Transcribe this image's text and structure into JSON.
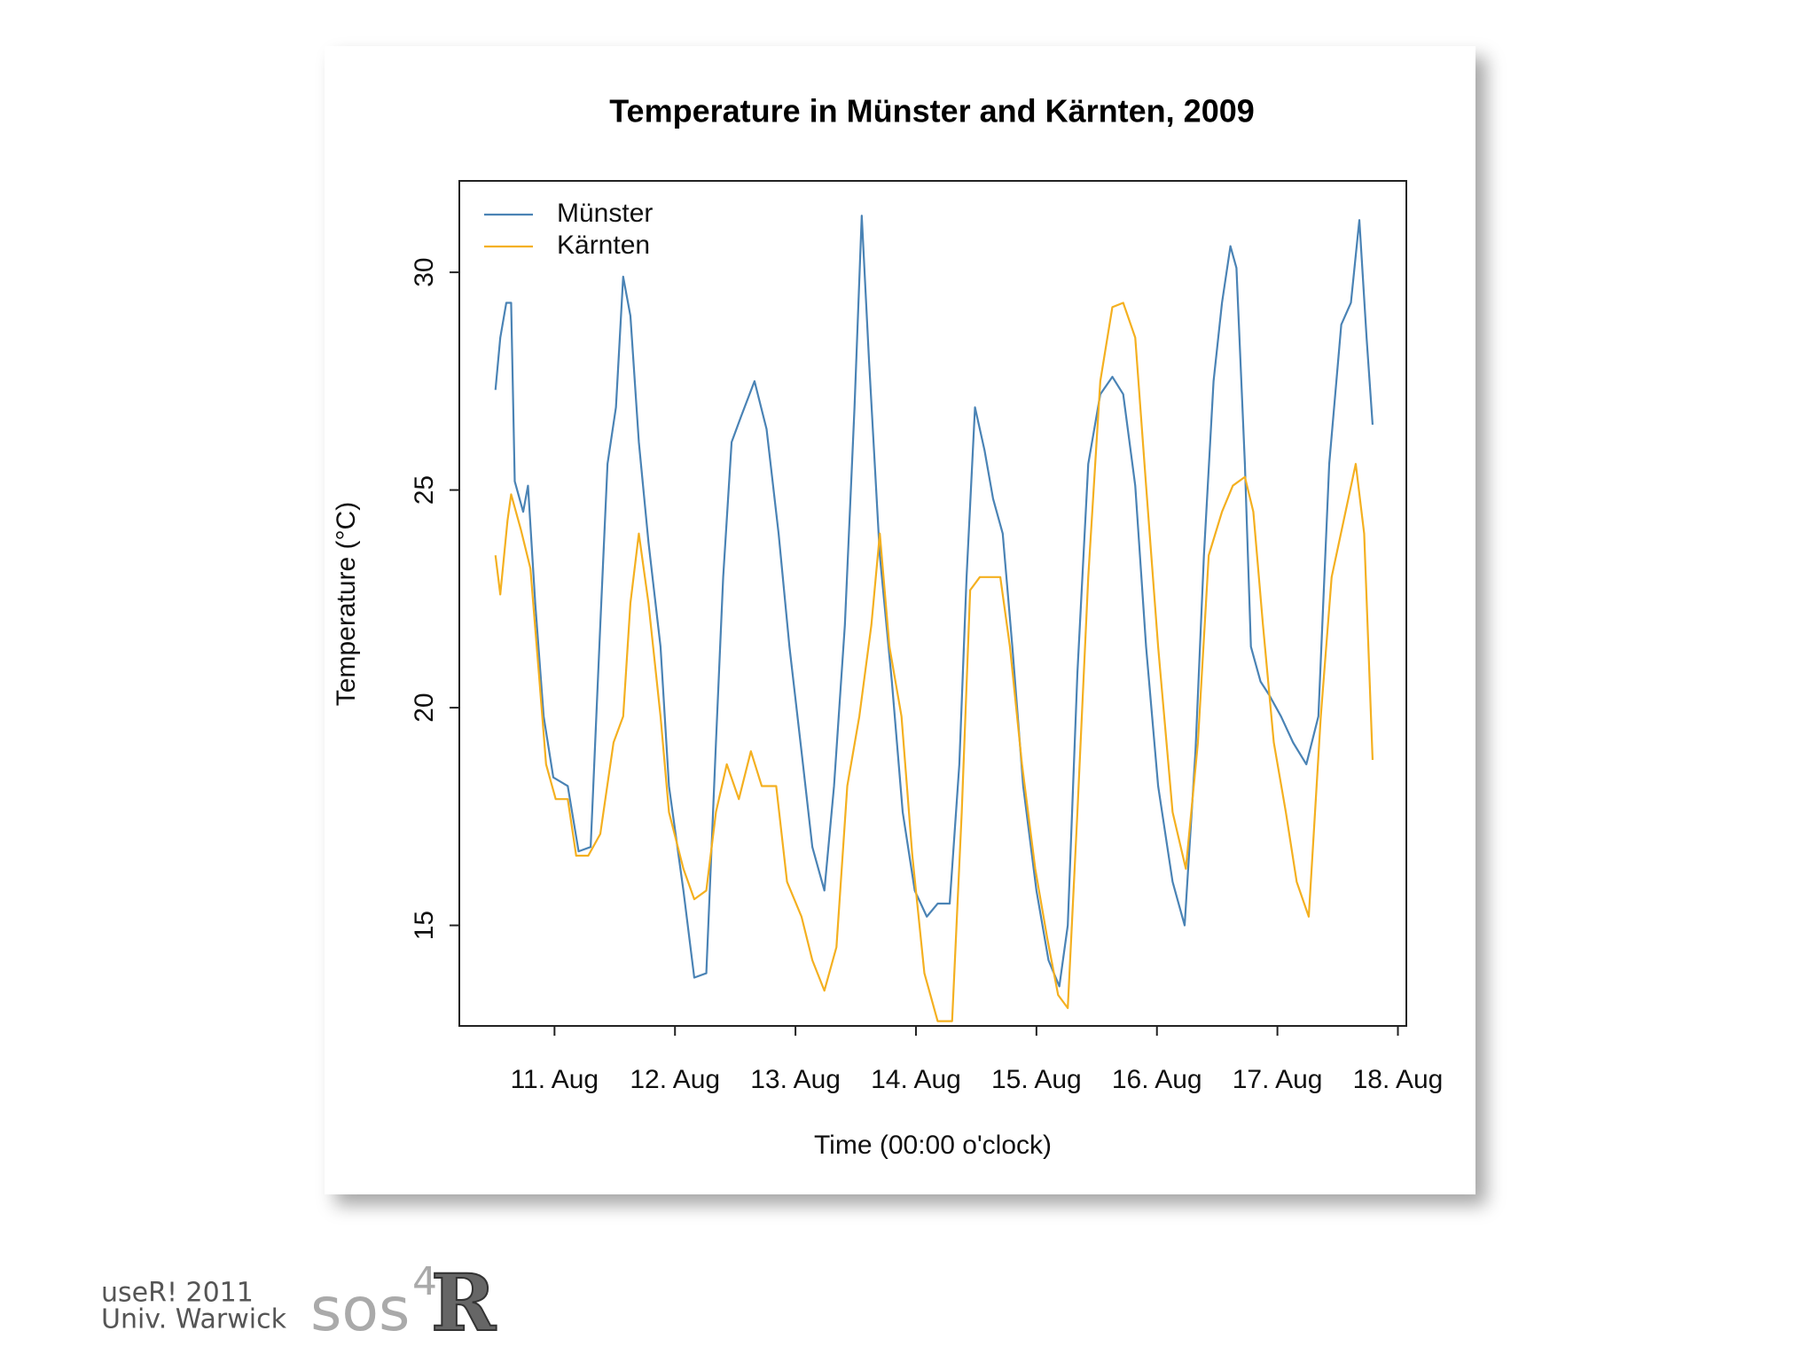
{
  "chart_data": {
    "type": "line",
    "title": "Temperature in Münster and Kärnten, 2009",
    "x_label": "Time (00:00 o'clock)",
    "y_label": "Temperature (°C)",
    "xlim": [
      10.21,
      18.07
    ],
    "ylim": [
      12.69,
      32.1
    ],
    "xticks": [
      {
        "value": 11,
        "label": "11. Aug"
      },
      {
        "value": 12,
        "label": "12. Aug"
      },
      {
        "value": 13,
        "label": "13. Aug"
      },
      {
        "value": 14,
        "label": "14. Aug"
      },
      {
        "value": 15,
        "label": "15. Aug"
      },
      {
        "value": 16,
        "label": "16. Aug"
      },
      {
        "value": 17,
        "label": "17. Aug"
      },
      {
        "value": 18,
        "label": "18. Aug"
      }
    ],
    "yticks": [
      15,
      20,
      25,
      30
    ],
    "legend": "top-left",
    "series": [
      {
        "name": "Münster",
        "color": "#4a83b5",
        "x": [
          10.51,
          10.55,
          10.6,
          10.64,
          10.67,
          10.74,
          10.78,
          10.84,
          10.91,
          10.99,
          11.11,
          11.2,
          11.3,
          11.38,
          11.44,
          11.51,
          11.57,
          11.63,
          11.7,
          11.78,
          11.88,
          11.95,
          12.07,
          12.16,
          12.26,
          12.34,
          12.4,
          12.47,
          12.55,
          12.66,
          12.76,
          12.86,
          12.95,
          13.05,
          13.14,
          13.24,
          13.32,
          13.41,
          13.49,
          13.55,
          13.61,
          13.7,
          13.8,
          13.89,
          13.99,
          14.09,
          14.18,
          14.28,
          14.36,
          14.42,
          14.49,
          14.57,
          14.64,
          14.72,
          14.8,
          14.89,
          15.0,
          15.1,
          15.19,
          15.26,
          15.34,
          15.43,
          15.53,
          15.63,
          15.72,
          15.82,
          15.91,
          16.01,
          16.13,
          16.23,
          16.32,
          16.39,
          16.47,
          16.54,
          16.61,
          16.66,
          16.73,
          16.78,
          16.86,
          16.93,
          17.03,
          17.13,
          17.24,
          17.34,
          17.43,
          17.53,
          17.61,
          17.68,
          17.74,
          17.79
        ],
        "values": [
          27.3,
          28.5,
          29.3,
          29.3,
          25.2,
          24.5,
          25.1,
          22.4,
          19.8,
          18.4,
          18.2,
          16.7,
          16.8,
          21.9,
          25.6,
          26.9,
          29.9,
          29.0,
          26.1,
          23.8,
          21.4,
          18.2,
          15.8,
          13.8,
          13.9,
          19.2,
          23.0,
          26.1,
          26.7,
          27.5,
          26.4,
          24.0,
          21.4,
          19.0,
          16.8,
          15.8,
          18.2,
          21.9,
          26.9,
          31.3,
          28.0,
          23.5,
          20.6,
          17.6,
          15.8,
          15.2,
          15.5,
          15.5,
          18.7,
          23.0,
          26.9,
          25.9,
          24.8,
          24.0,
          21.4,
          18.2,
          15.8,
          14.2,
          13.6,
          15.0,
          20.8,
          25.6,
          27.2,
          27.6,
          27.2,
          25.1,
          21.4,
          18.2,
          16.0,
          15.0,
          19.0,
          23.5,
          27.5,
          29.3,
          30.6,
          30.1,
          25.6,
          21.4,
          20.6,
          20.3,
          19.8,
          19.2,
          18.7,
          19.8,
          25.6,
          28.8,
          29.3,
          31.2,
          28.5,
          26.5
        ]
      },
      {
        "name": "Kärnten",
        "color": "#f4b020",
        "x": [
          10.51,
          10.55,
          10.61,
          10.64,
          10.72,
          10.8,
          10.87,
          10.93,
          11.01,
          11.11,
          11.18,
          11.28,
          11.38,
          11.49,
          11.57,
          11.63,
          11.7,
          11.78,
          11.88,
          11.95,
          12.07,
          12.16,
          12.26,
          12.34,
          12.43,
          12.53,
          12.63,
          12.72,
          12.84,
          12.93,
          13.05,
          13.14,
          13.24,
          13.34,
          13.43,
          13.53,
          13.63,
          13.7,
          13.78,
          13.88,
          13.97,
          14.07,
          14.18,
          14.3,
          14.38,
          14.45,
          14.53,
          14.63,
          14.7,
          14.78,
          14.88,
          14.99,
          15.09,
          15.18,
          15.26,
          15.34,
          15.43,
          15.53,
          15.63,
          15.72,
          15.82,
          15.91,
          16.01,
          16.13,
          16.24,
          16.34,
          16.43,
          16.54,
          16.63,
          16.73,
          16.8,
          16.88,
          16.97,
          17.07,
          17.16,
          17.26,
          17.36,
          17.45,
          17.55,
          17.65,
          17.72,
          17.79
        ],
        "values": [
          23.5,
          22.6,
          24.3,
          24.9,
          24.1,
          23.2,
          20.8,
          18.7,
          17.9,
          17.9,
          16.6,
          16.6,
          17.1,
          19.2,
          19.8,
          22.4,
          24.0,
          22.4,
          19.8,
          17.6,
          16.3,
          15.6,
          15.8,
          17.6,
          18.7,
          17.9,
          19.0,
          18.2,
          18.2,
          16.0,
          15.2,
          14.2,
          13.5,
          14.5,
          18.2,
          19.8,
          21.9,
          24.0,
          21.4,
          19.8,
          16.6,
          13.9,
          12.8,
          12.8,
          17.6,
          22.7,
          23.0,
          23.0,
          23.0,
          21.4,
          18.7,
          16.3,
          14.7,
          13.4,
          13.1,
          17.6,
          23.0,
          27.5,
          29.2,
          29.3,
          28.5,
          25.1,
          21.4,
          17.6,
          16.3,
          19.2,
          23.5,
          24.5,
          25.1,
          25.3,
          24.5,
          21.9,
          19.2,
          17.6,
          16.0,
          15.2,
          19.8,
          23.0,
          24.3,
          25.6,
          24.0,
          18.8
        ]
      }
    ]
  },
  "footer": {
    "event": "useR! 2011",
    "venue": "Univ. Warwick",
    "logo": {
      "word": "sos",
      "superscript": "4",
      "letter": "R"
    }
  }
}
